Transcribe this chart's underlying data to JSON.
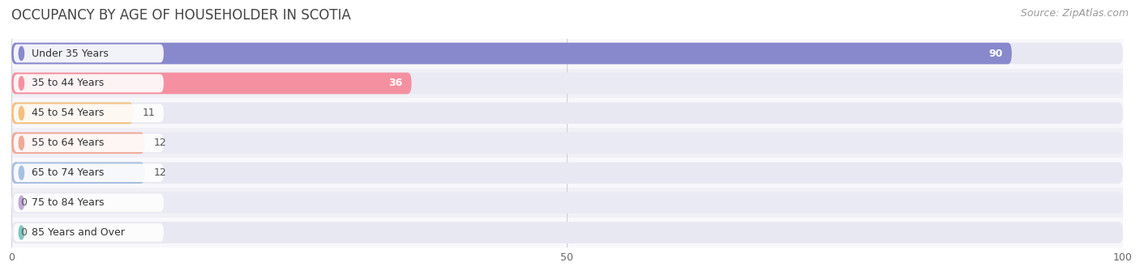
{
  "title": "OCCUPANCY BY AGE OF HOUSEHOLDER IN SCOTIA",
  "source": "Source: ZipAtlas.com",
  "categories": [
    "Under 35 Years",
    "35 to 44 Years",
    "45 to 54 Years",
    "55 to 64 Years",
    "65 to 74 Years",
    "75 to 84 Years",
    "85 Years and Over"
  ],
  "values": [
    90,
    36,
    11,
    12,
    12,
    0,
    0
  ],
  "bar_colors": [
    "#8888cc",
    "#f590a0",
    "#f5c080",
    "#f0a898",
    "#a8c0e0",
    "#c0a8d8",
    "#80c8c0"
  ],
  "bar_bg_color_light": "#f0f0f5",
  "bar_bg_color_dark": "#e8e8f0",
  "row_bg_light": "#f8f8fc",
  "row_bg_dark": "#f0f0f6",
  "xlim": [
    0,
    100
  ],
  "background_color": "#ffffff",
  "title_fontsize": 12,
  "source_fontsize": 9,
  "bar_label_fontsize": 9,
  "cat_label_fontsize": 9,
  "tick_fontsize": 9,
  "grid_color": "#d0d0d8",
  "bar_height": 0.72,
  "xticks": [
    0,
    50,
    100
  ],
  "value_label_threshold": 15
}
